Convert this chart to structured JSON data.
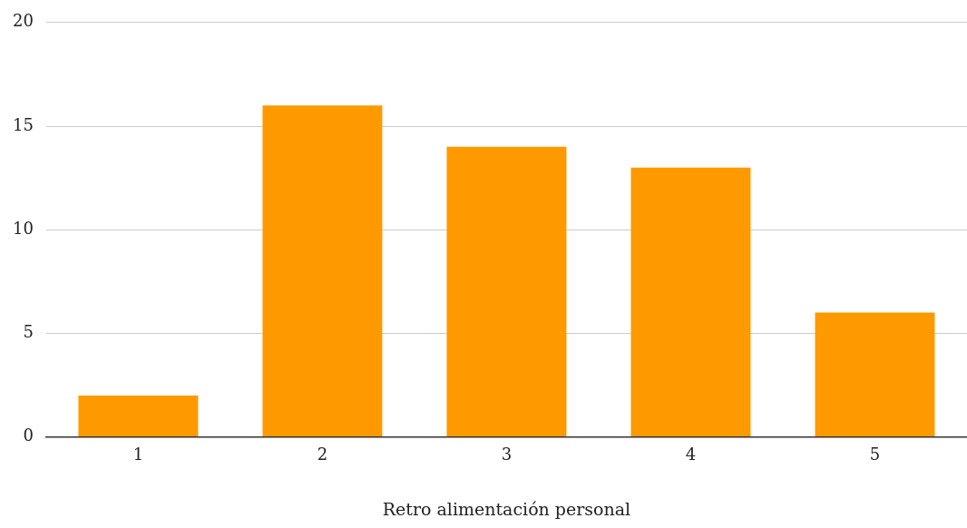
{
  "chart_data": {
    "type": "bar",
    "xlabel": "Retro alimentación personal",
    "categories": [
      "1",
      "2",
      "3",
      "4",
      "5"
    ],
    "values": [
      2,
      16,
      14,
      13,
      6
    ],
    "color": "#ff9900",
    "ylim": [
      0,
      20
    ],
    "yticks": [
      0,
      5,
      10,
      15,
      20
    ],
    "grid": "y",
    "legend": false
  }
}
